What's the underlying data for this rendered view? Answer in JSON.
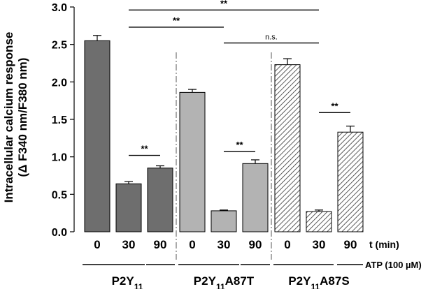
{
  "chart_data": {
    "type": "bar",
    "ylabel_line1": "Intracellular calcium response",
    "ylabel_line2": "(Δ F340 nm/F380 nm)",
    "ylim": [
      0,
      3.0
    ],
    "yticks": [
      0.0,
      0.5,
      1.0,
      1.5,
      2.0,
      2.5,
      3.0
    ],
    "ytick_labels": [
      "0.0",
      "0.5",
      "1.0",
      "1.5",
      "2.0",
      "2.5",
      "3.0"
    ],
    "time_axis_label": "t (min)",
    "atp_label": "ATP (100 µM)",
    "groups": [
      {
        "name": "P2Y",
        "subscript": "11",
        "suffix": "",
        "fill": "#6e6e6e",
        "pattern": "solid",
        "bars": [
          {
            "t": "0",
            "value": 2.55,
            "error": 0.07
          },
          {
            "t": "30",
            "value": 0.64,
            "error": 0.03
          },
          {
            "t": "90",
            "value": 0.85,
            "error": 0.03
          }
        ]
      },
      {
        "name": "P2Y",
        "subscript": "11",
        "suffix": "A87T",
        "fill": "#b3b3b3",
        "pattern": "solid",
        "bars": [
          {
            "t": "0",
            "value": 1.86,
            "error": 0.04
          },
          {
            "t": "30",
            "value": 0.28,
            "error": 0.01
          },
          {
            "t": "90",
            "value": 0.91,
            "error": 0.05
          }
        ]
      },
      {
        "name": "P2Y",
        "subscript": "11",
        "suffix": "A87S",
        "fill": "#ffffff",
        "pattern": "hatch",
        "bars": [
          {
            "t": "0",
            "value": 2.23,
            "error": 0.08
          },
          {
            "t": "30",
            "value": 0.27,
            "error": 0.02
          },
          {
            "t": "90",
            "value": 1.33,
            "error": 0.08
          }
        ]
      }
    ],
    "significance": [
      {
        "from_bar": 1,
        "to_bar": 7,
        "y": 2.96,
        "label": "**"
      },
      {
        "from_bar": 1,
        "to_bar": 4,
        "y": 2.73,
        "label": "**"
      },
      {
        "from_bar": 4,
        "to_bar": 7,
        "y": 2.52,
        "label": "n.s."
      },
      {
        "from_bar": 1,
        "to_bar": 2,
        "y": 1.02,
        "label": "**"
      },
      {
        "from_bar": 4,
        "to_bar": 5,
        "y": 1.07,
        "label": "**"
      },
      {
        "from_bar": 7,
        "to_bar": 8,
        "y": 1.59,
        "label": "**"
      }
    ]
  }
}
